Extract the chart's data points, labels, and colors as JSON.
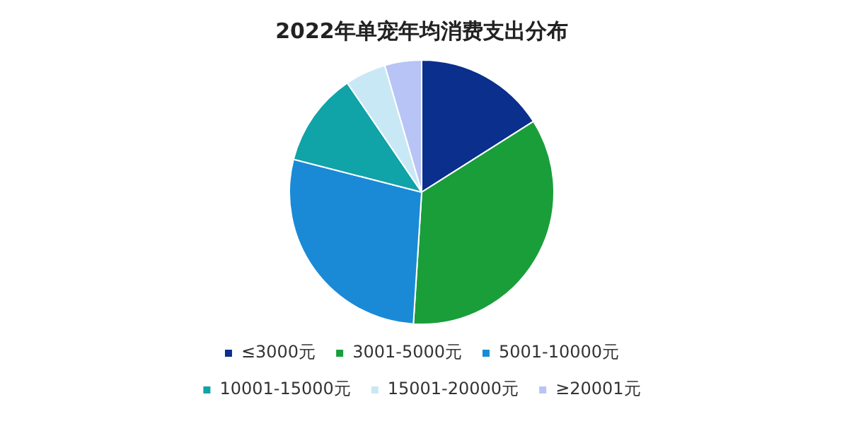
{
  "chart_data": {
    "type": "pie",
    "title": "2022年单宠年均消费支出分布",
    "categories": [
      "≤3000元",
      "3001-5000元",
      "5001-10000元",
      "10001-15000元",
      "15001-20000元",
      "≥20001元"
    ],
    "values": [
      16,
      35,
      28,
      11.5,
      5,
      4.5
    ],
    "colors": [
      "#0a2f8c",
      "#1a9e3a",
      "#1a8ad6",
      "#10a3a8",
      "#c9e8f5",
      "#b8c4f5"
    ],
    "legend": "bottom"
  }
}
